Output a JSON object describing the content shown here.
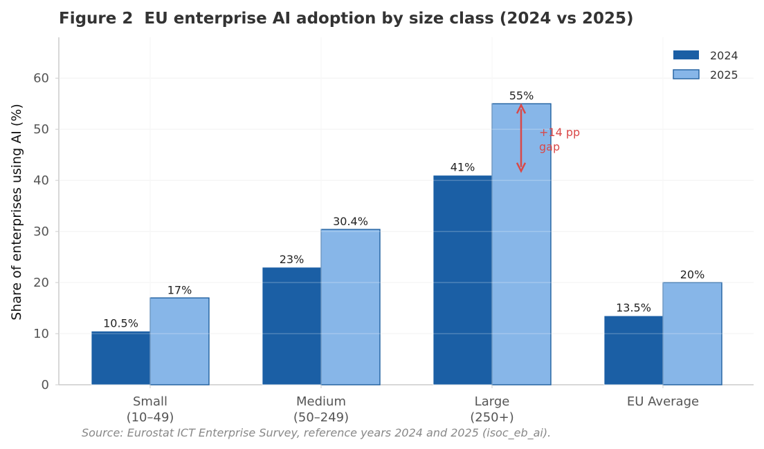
{
  "chart_data": {
    "type": "bar",
    "title": "Figure 2  EU enterprise AI adoption by size class (2024 vs 2025)",
    "ylabel": "Share of enterprises using AI (%)",
    "xlabel": "",
    "categories": [
      [
        "Small",
        "(10–49)"
      ],
      [
        "Medium",
        "(50–249)"
      ],
      [
        "Large",
        "(250+)"
      ],
      [
        "EU Average"
      ]
    ],
    "series": [
      {
        "name": "2024",
        "values": [
          10.5,
          23,
          41,
          13.5
        ],
        "labels": [
          "10.5%",
          "23%",
          "41%",
          "13.5%"
        ],
        "color": "#1b5fa5"
      },
      {
        "name": "2025",
        "values": [
          17,
          30.4,
          55,
          20
        ],
        "labels": [
          "17%",
          "30.4%",
          "55%",
          "20%"
        ],
        "color": "#87b6e8"
      }
    ],
    "ylim": [
      0,
      68
    ],
    "yticks": [
      0,
      10,
      20,
      30,
      40,
      50,
      60
    ],
    "grid": true,
    "legend": "top-right",
    "annotation": {
      "lines": [
        "+14 pp",
        "gap"
      ],
      "category": "Large",
      "from": 55,
      "to": 41,
      "color": "#d94848"
    },
    "source": "Source: Eurostat ICT Enterprise Survey, reference years 2024 and 2025 (isoc_eb_ai)."
  }
}
